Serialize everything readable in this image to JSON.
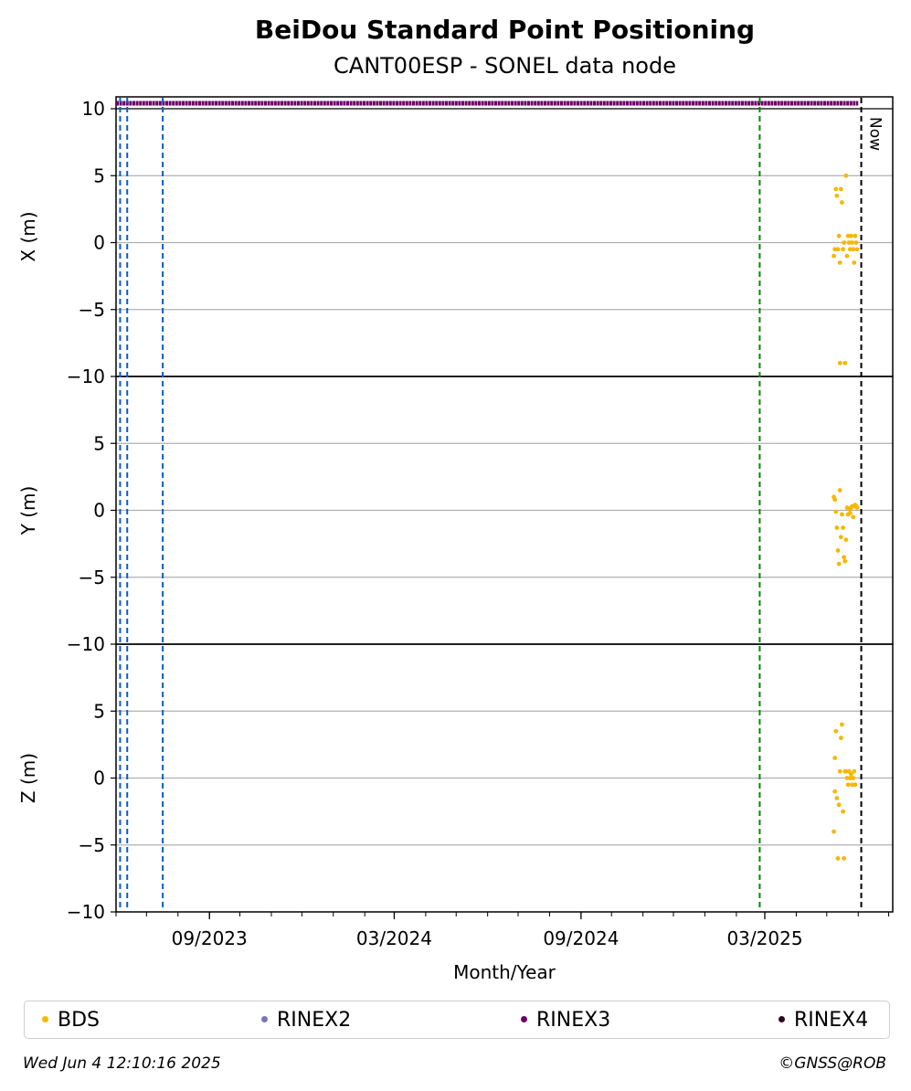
{
  "title": "BeiDou Standard Point Positioning",
  "subtitle": "CANT00ESP - SONEL data node",
  "footer": {
    "timestamp": "Wed Jun  4 12:10:16 2025",
    "credit": "©GNSS@ROB"
  },
  "colors": {
    "BDS": "#f5b800",
    "RINEX2": "#7b74b3",
    "RINEX3": "#6a006a",
    "RINEX4": "#2a0a1f",
    "receiver_change": "#0a5cc7",
    "antenna_change": "#008800",
    "now": "#000000",
    "grid": "#b0b0b0"
  },
  "legend": [
    {
      "label": "BDS",
      "color": "#f5b800"
    },
    {
      "label": "RINEX2",
      "color": "#7b74b3"
    },
    {
      "label": "RINEX3",
      "color": "#6a006a"
    },
    {
      "label": "RINEX4",
      "color": "#2a0a1f"
    }
  ],
  "chart_data": {
    "type": "scatter",
    "xlabel": "Month/Year",
    "x_ticks": [
      "09/2023",
      "03/2024",
      "09/2024",
      "03/2025"
    ],
    "x_range": [
      "2023-06-01",
      "2025-07-05"
    ],
    "now_label": "Now",
    "now_date": "2025-06-04",
    "vertical_lines": [
      {
        "date": "2023-06-05",
        "color": "blue"
      },
      {
        "date": "2023-06-12",
        "color": "blue"
      },
      {
        "date": "2023-07-17",
        "color": "blue"
      },
      {
        "date": "2025-02-24",
        "color": "green"
      }
    ],
    "rinex3_availability": {
      "start": "2023-06-01",
      "end": "2025-06-01"
    },
    "panels": [
      {
        "ylabel": "X (m)",
        "ylim": [
          -10,
          10
        ],
        "y_ticks": [
          -10,
          -5,
          0,
          5,
          10
        ],
        "grid": true,
        "series": [
          {
            "name": "BDS",
            "points": [
              [
                "2025-05-08",
                -1
              ],
              [
                "2025-05-09",
                -0.5
              ],
              [
                "2025-05-10",
                4
              ],
              [
                "2025-05-11",
                3.5
              ],
              [
                "2025-05-12",
                -0.5
              ],
              [
                "2025-05-13",
                0.5
              ],
              [
                "2025-05-14",
                -1.5
              ],
              [
                "2025-05-14",
                -9
              ],
              [
                "2025-05-15",
                4
              ],
              [
                "2025-05-16",
                3
              ],
              [
                "2025-05-17",
                -0.5
              ],
              [
                "2025-05-18",
                0
              ],
              [
                "2025-05-19",
                -9
              ],
              [
                "2025-05-20",
                5
              ],
              [
                "2025-05-21",
                -1
              ],
              [
                "2025-05-22",
                0.5
              ],
              [
                "2025-05-23",
                0
              ],
              [
                "2025-05-24",
                -0.5
              ],
              [
                "2025-05-25",
                0.5
              ],
              [
                "2025-05-26",
                0
              ],
              [
                "2025-05-27",
                -0.5
              ],
              [
                "2025-05-28",
                -1.5
              ],
              [
                "2025-05-29",
                0.5
              ],
              [
                "2025-05-30",
                0
              ],
              [
                "2025-05-31",
                -0.5
              ]
            ]
          }
        ]
      },
      {
        "ylabel": "Y (m)",
        "ylim": [
          -10,
          10
        ],
        "y_ticks": [
          -10,
          -5,
          0,
          5
        ],
        "grid": true,
        "series": [
          {
            "name": "BDS",
            "points": [
              [
                "2025-05-08",
                1
              ],
              [
                "2025-05-09",
                0.8
              ],
              [
                "2025-05-10",
                -0.1
              ],
              [
                "2025-05-11",
                -1.3
              ],
              [
                "2025-05-12",
                -3
              ],
              [
                "2025-05-13",
                -4
              ],
              [
                "2025-05-14",
                1.5
              ],
              [
                "2025-05-15",
                -2
              ],
              [
                "2025-05-16",
                -0.3
              ],
              [
                "2025-05-17",
                -1.3
              ],
              [
                "2025-05-18",
                -3.5
              ],
              [
                "2025-05-19",
                -3.8
              ],
              [
                "2025-05-20",
                -2.2
              ],
              [
                "2025-05-21",
                0.2
              ],
              [
                "2025-05-22",
                -0.3
              ],
              [
                "2025-05-23",
                0.1
              ],
              [
                "2025-05-24",
                -0.2
              ],
              [
                "2025-05-25",
                0.2
              ],
              [
                "2025-05-26",
                0.3
              ],
              [
                "2025-05-27",
                -0.5
              ],
              [
                "2025-05-28",
                0.3
              ],
              [
                "2025-05-29",
                0.4
              ],
              [
                "2025-05-30",
                0.3
              ],
              [
                "2025-05-31",
                0.2
              ]
            ]
          }
        ]
      },
      {
        "ylabel": "Z (m)",
        "ylim": [
          -10,
          10
        ],
        "y_ticks": [
          -10,
          -5,
          0,
          5
        ],
        "grid": true,
        "series": [
          {
            "name": "BDS",
            "points": [
              [
                "2025-05-08",
                -4
              ],
              [
                "2025-05-09",
                1.5
              ],
              [
                "2025-05-09",
                -1
              ],
              [
                "2025-05-10",
                3.5
              ],
              [
                "2025-05-11",
                -1.5
              ],
              [
                "2025-05-12",
                -6
              ],
              [
                "2025-05-13",
                -2
              ],
              [
                "2025-05-14",
                0.5
              ],
              [
                "2025-05-15",
                3
              ],
              [
                "2025-05-16",
                4
              ],
              [
                "2025-05-17",
                -2.5
              ],
              [
                "2025-05-18",
                -6
              ],
              [
                "2025-05-19",
                0.5
              ],
              [
                "2025-05-20",
                0.5
              ],
              [
                "2025-05-21",
                0
              ],
              [
                "2025-05-22",
                -0.5
              ],
              [
                "2025-05-23",
                0.5
              ],
              [
                "2025-05-24",
                0
              ],
              [
                "2025-05-25",
                0.3
              ],
              [
                "2025-05-26",
                -0.5
              ],
              [
                "2025-05-27",
                0
              ],
              [
                "2025-05-28",
                0.5
              ],
              [
                "2025-05-29",
                -0.5
              ]
            ]
          }
        ]
      }
    ]
  }
}
